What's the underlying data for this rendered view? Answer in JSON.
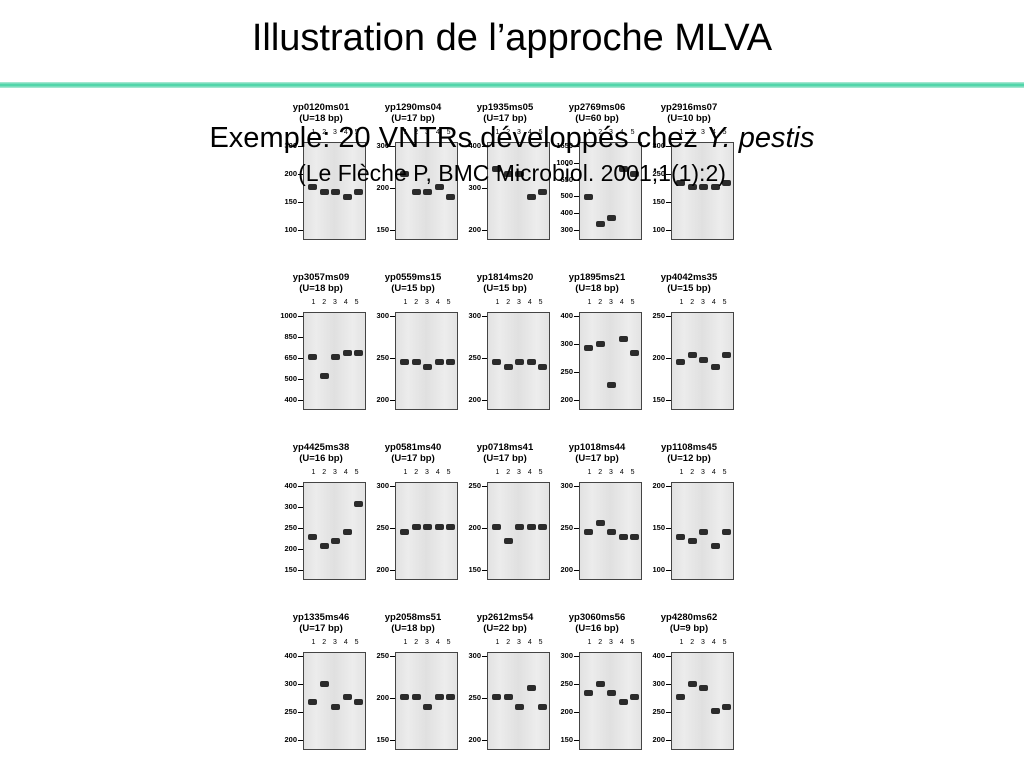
{
  "slide": {
    "title": "Illustration de l’approche MLVA",
    "subtitle_text": "Exemple: 20 VNTRs développés chez ",
    "subtitle_species": "Y. pestis",
    "reference": "(Le Flèche P, BMC Microbiol. 2001;1(1):2)"
  },
  "colors": {
    "rule_accent": "#3fd1a1",
    "band": "#2b2b2b",
    "gel_background": "#e6e6e6"
  },
  "lane_numbers": [
    "1",
    "2",
    "3",
    "4",
    "5"
  ],
  "panels": [
    {
      "name": "yp0120ms01",
      "unit": "(U=18 bp)",
      "markers": [
        "300",
        "200",
        "150",
        "100"
      ],
      "bands": [
        0.45,
        0.5,
        0.5,
        0.55,
        0.5
      ]
    },
    {
      "name": "yp1290ms04",
      "unit": "(U=17 bp)",
      "markers": [
        "300",
        "200",
        "150"
      ],
      "bands": [
        0.3,
        0.5,
        0.5,
        0.45,
        0.55
      ]
    },
    {
      "name": "yp1935ms05",
      "unit": "(U=17 bp)",
      "markers": [
        "400",
        "300",
        "200"
      ],
      "bands": [
        0.25,
        0.3,
        0.3,
        0.55,
        0.5
      ]
    },
    {
      "name": "yp2769ms06",
      "unit": "(U=60 bp)",
      "markers": [
        "1650",
        "1000",
        "650",
        "500",
        "400",
        "300"
      ],
      "bands": [
        0.55,
        0.85,
        0.78,
        0.25,
        0.3
      ]
    },
    {
      "name": "yp2916ms07",
      "unit": "(U=10 bp)",
      "markers": [
        "300",
        "250",
        "150",
        "100"
      ],
      "bands": [
        0.4,
        0.45,
        0.45,
        0.45,
        0.4
      ]
    },
    {
      "name": "yp3057ms09",
      "unit": "(U=18 bp)",
      "markers": [
        "1000",
        "850",
        "650",
        "500",
        "400"
      ],
      "bands": [
        0.45,
        0.65,
        0.45,
        0.4,
        0.4
      ]
    },
    {
      "name": "yp0559ms15",
      "unit": "(U=15 bp)",
      "markers": [
        "300",
        "250",
        "200"
      ],
      "bands": [
        0.5,
        0.5,
        0.55,
        0.5,
        0.5
      ]
    },
    {
      "name": "yp1814ms20",
      "unit": "(U=15 bp)",
      "markers": [
        "300",
        "250",
        "200"
      ],
      "bands": [
        0.5,
        0.55,
        0.5,
        0.5,
        0.55
      ]
    },
    {
      "name": "yp1895ms21",
      "unit": "(U=18 bp)",
      "markers": [
        "400",
        "300",
        "250",
        "200"
      ],
      "bands": [
        0.35,
        0.3,
        0.75,
        0.25,
        0.4
      ]
    },
    {
      "name": "yp4042ms35",
      "unit": "(U=15 bp)",
      "markers": [
        "250",
        "200",
        "150"
      ],
      "bands": [
        0.5,
        0.42,
        0.48,
        0.55,
        0.42
      ]
    },
    {
      "name": "yp4425ms38",
      "unit": "(U=16 bp)",
      "markers": [
        "400",
        "300",
        "250",
        "200",
        "150"
      ],
      "bands": [
        0.55,
        0.65,
        0.6,
        0.5,
        0.2
      ]
    },
    {
      "name": "yp0581ms40",
      "unit": "(U=17 bp)",
      "markers": [
        "300",
        "250",
        "200"
      ],
      "bands": [
        0.5,
        0.45,
        0.45,
        0.45,
        0.45
      ]
    },
    {
      "name": "yp0718ms41",
      "unit": "(U=17 bp)",
      "markers": [
        "250",
        "200",
        "150"
      ],
      "bands": [
        0.45,
        0.6,
        0.45,
        0.45,
        0.45
      ]
    },
    {
      "name": "yp1018ms44",
      "unit": "(U=17 bp)",
      "markers": [
        "300",
        "250",
        "200"
      ],
      "bands": [
        0.5,
        0.4,
        0.5,
        0.55,
        0.55
      ]
    },
    {
      "name": "yp1108ms45",
      "unit": "(U=12 bp)",
      "markers": [
        "200",
        "150",
        "100"
      ],
      "bands": [
        0.55,
        0.6,
        0.5,
        0.65,
        0.5
      ]
    },
    {
      "name": "yp1335ms46",
      "unit": "(U=17 bp)",
      "markers": [
        "400",
        "300",
        "250",
        "200"
      ],
      "bands": [
        0.5,
        0.3,
        0.55,
        0.45,
        0.5
      ]
    },
    {
      "name": "yp2058ms51",
      "unit": "(U=18 bp)",
      "markers": [
        "250",
        "200",
        "150"
      ],
      "bands": [
        0.45,
        0.45,
        0.55,
        0.45,
        0.45
      ]
    },
    {
      "name": "yp2612ms54",
      "unit": "(U=22 bp)",
      "markers": [
        "300",
        "250",
        "200"
      ],
      "bands": [
        0.45,
        0.45,
        0.55,
        0.35,
        0.55
      ]
    },
    {
      "name": "yp3060ms56",
      "unit": "(U=16 bp)",
      "markers": [
        "300",
        "250",
        "200",
        "150"
      ],
      "bands": [
        0.4,
        0.3,
        0.4,
        0.5,
        0.45
      ]
    },
    {
      "name": "yp4280ms62",
      "unit": "(U=9 bp)",
      "markers": [
        "400",
        "300",
        "250",
        "200"
      ],
      "bands": [
        0.45,
        0.3,
        0.35,
        0.6,
        0.55
      ]
    }
  ]
}
